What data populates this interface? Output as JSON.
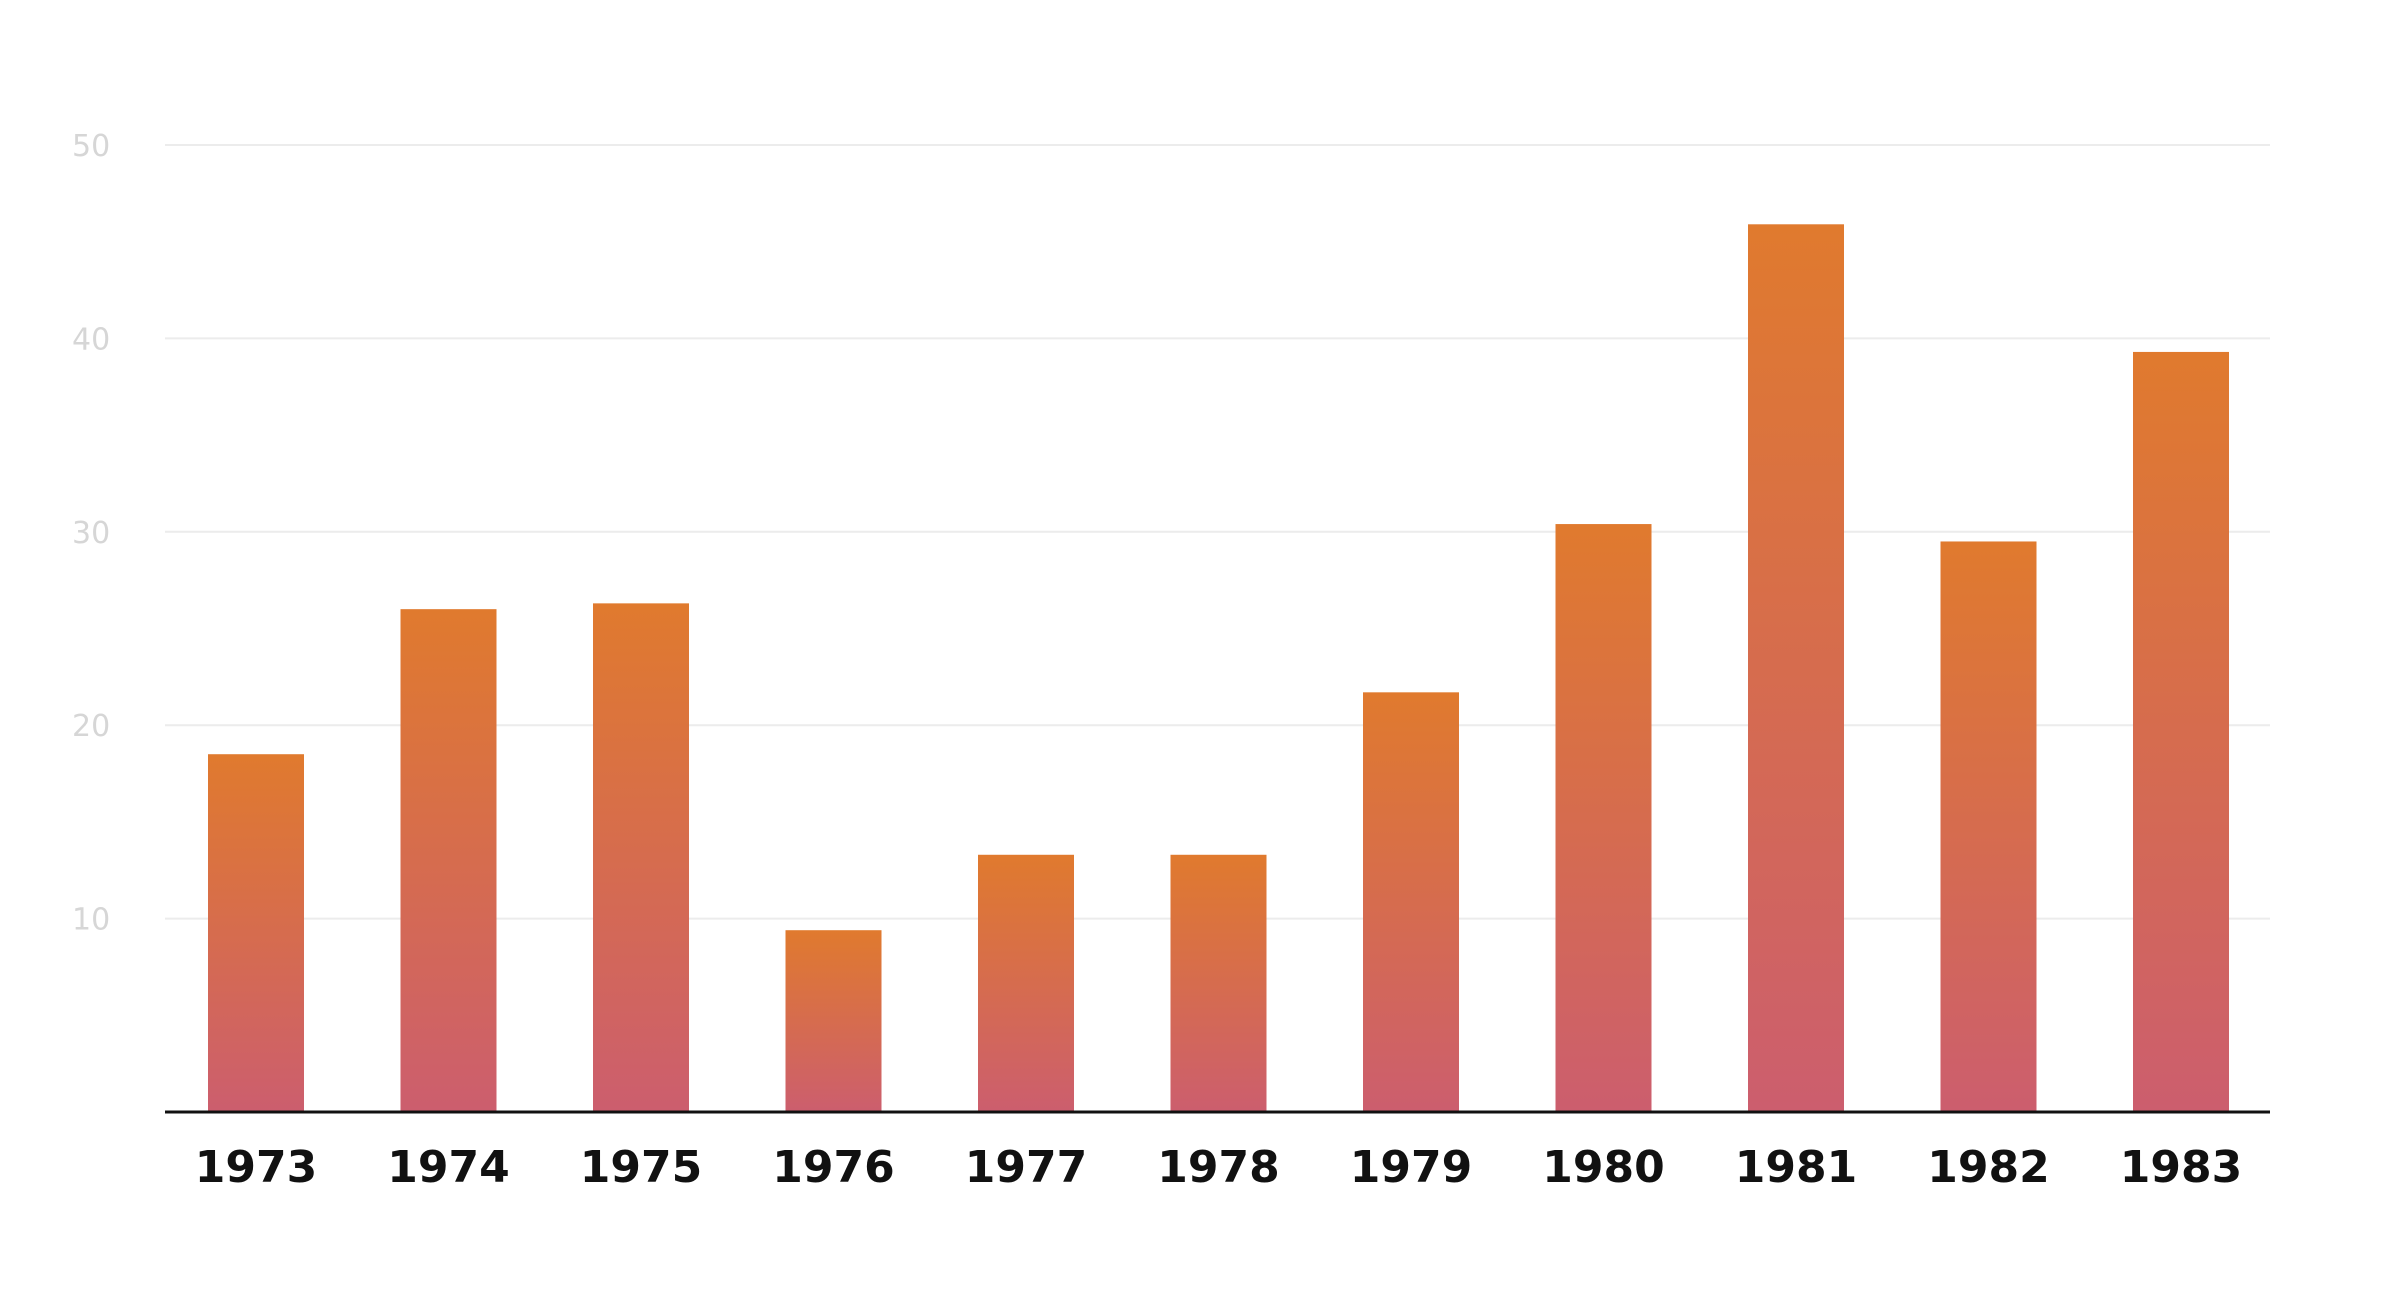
{
  "chart_data": {
    "type": "bar",
    "title": "",
    "xlabel": "",
    "ylabel": "",
    "categories": [
      "1973",
      "1974",
      "1975",
      "1976",
      "1977",
      "1978",
      "1979",
      "1980",
      "1981",
      "1982",
      "1983"
    ],
    "values": [
      18.5,
      26.0,
      26.3,
      9.4,
      13.3,
      13.3,
      21.7,
      30.4,
      45.9,
      29.5,
      39.3
    ],
    "ylim": [
      0,
      50
    ],
    "yticks": [
      "10",
      "20",
      "30",
      "40",
      "50"
    ],
    "grid": true,
    "legend": "none",
    "colors": {
      "bar_top": "#E07A2E",
      "bar_bottom": "#CC5E6E",
      "gridline": "#ECECEC",
      "y_tick_text": "#D6D6D6",
      "x_tick_text": "#111111",
      "baseline": "#111111"
    }
  }
}
